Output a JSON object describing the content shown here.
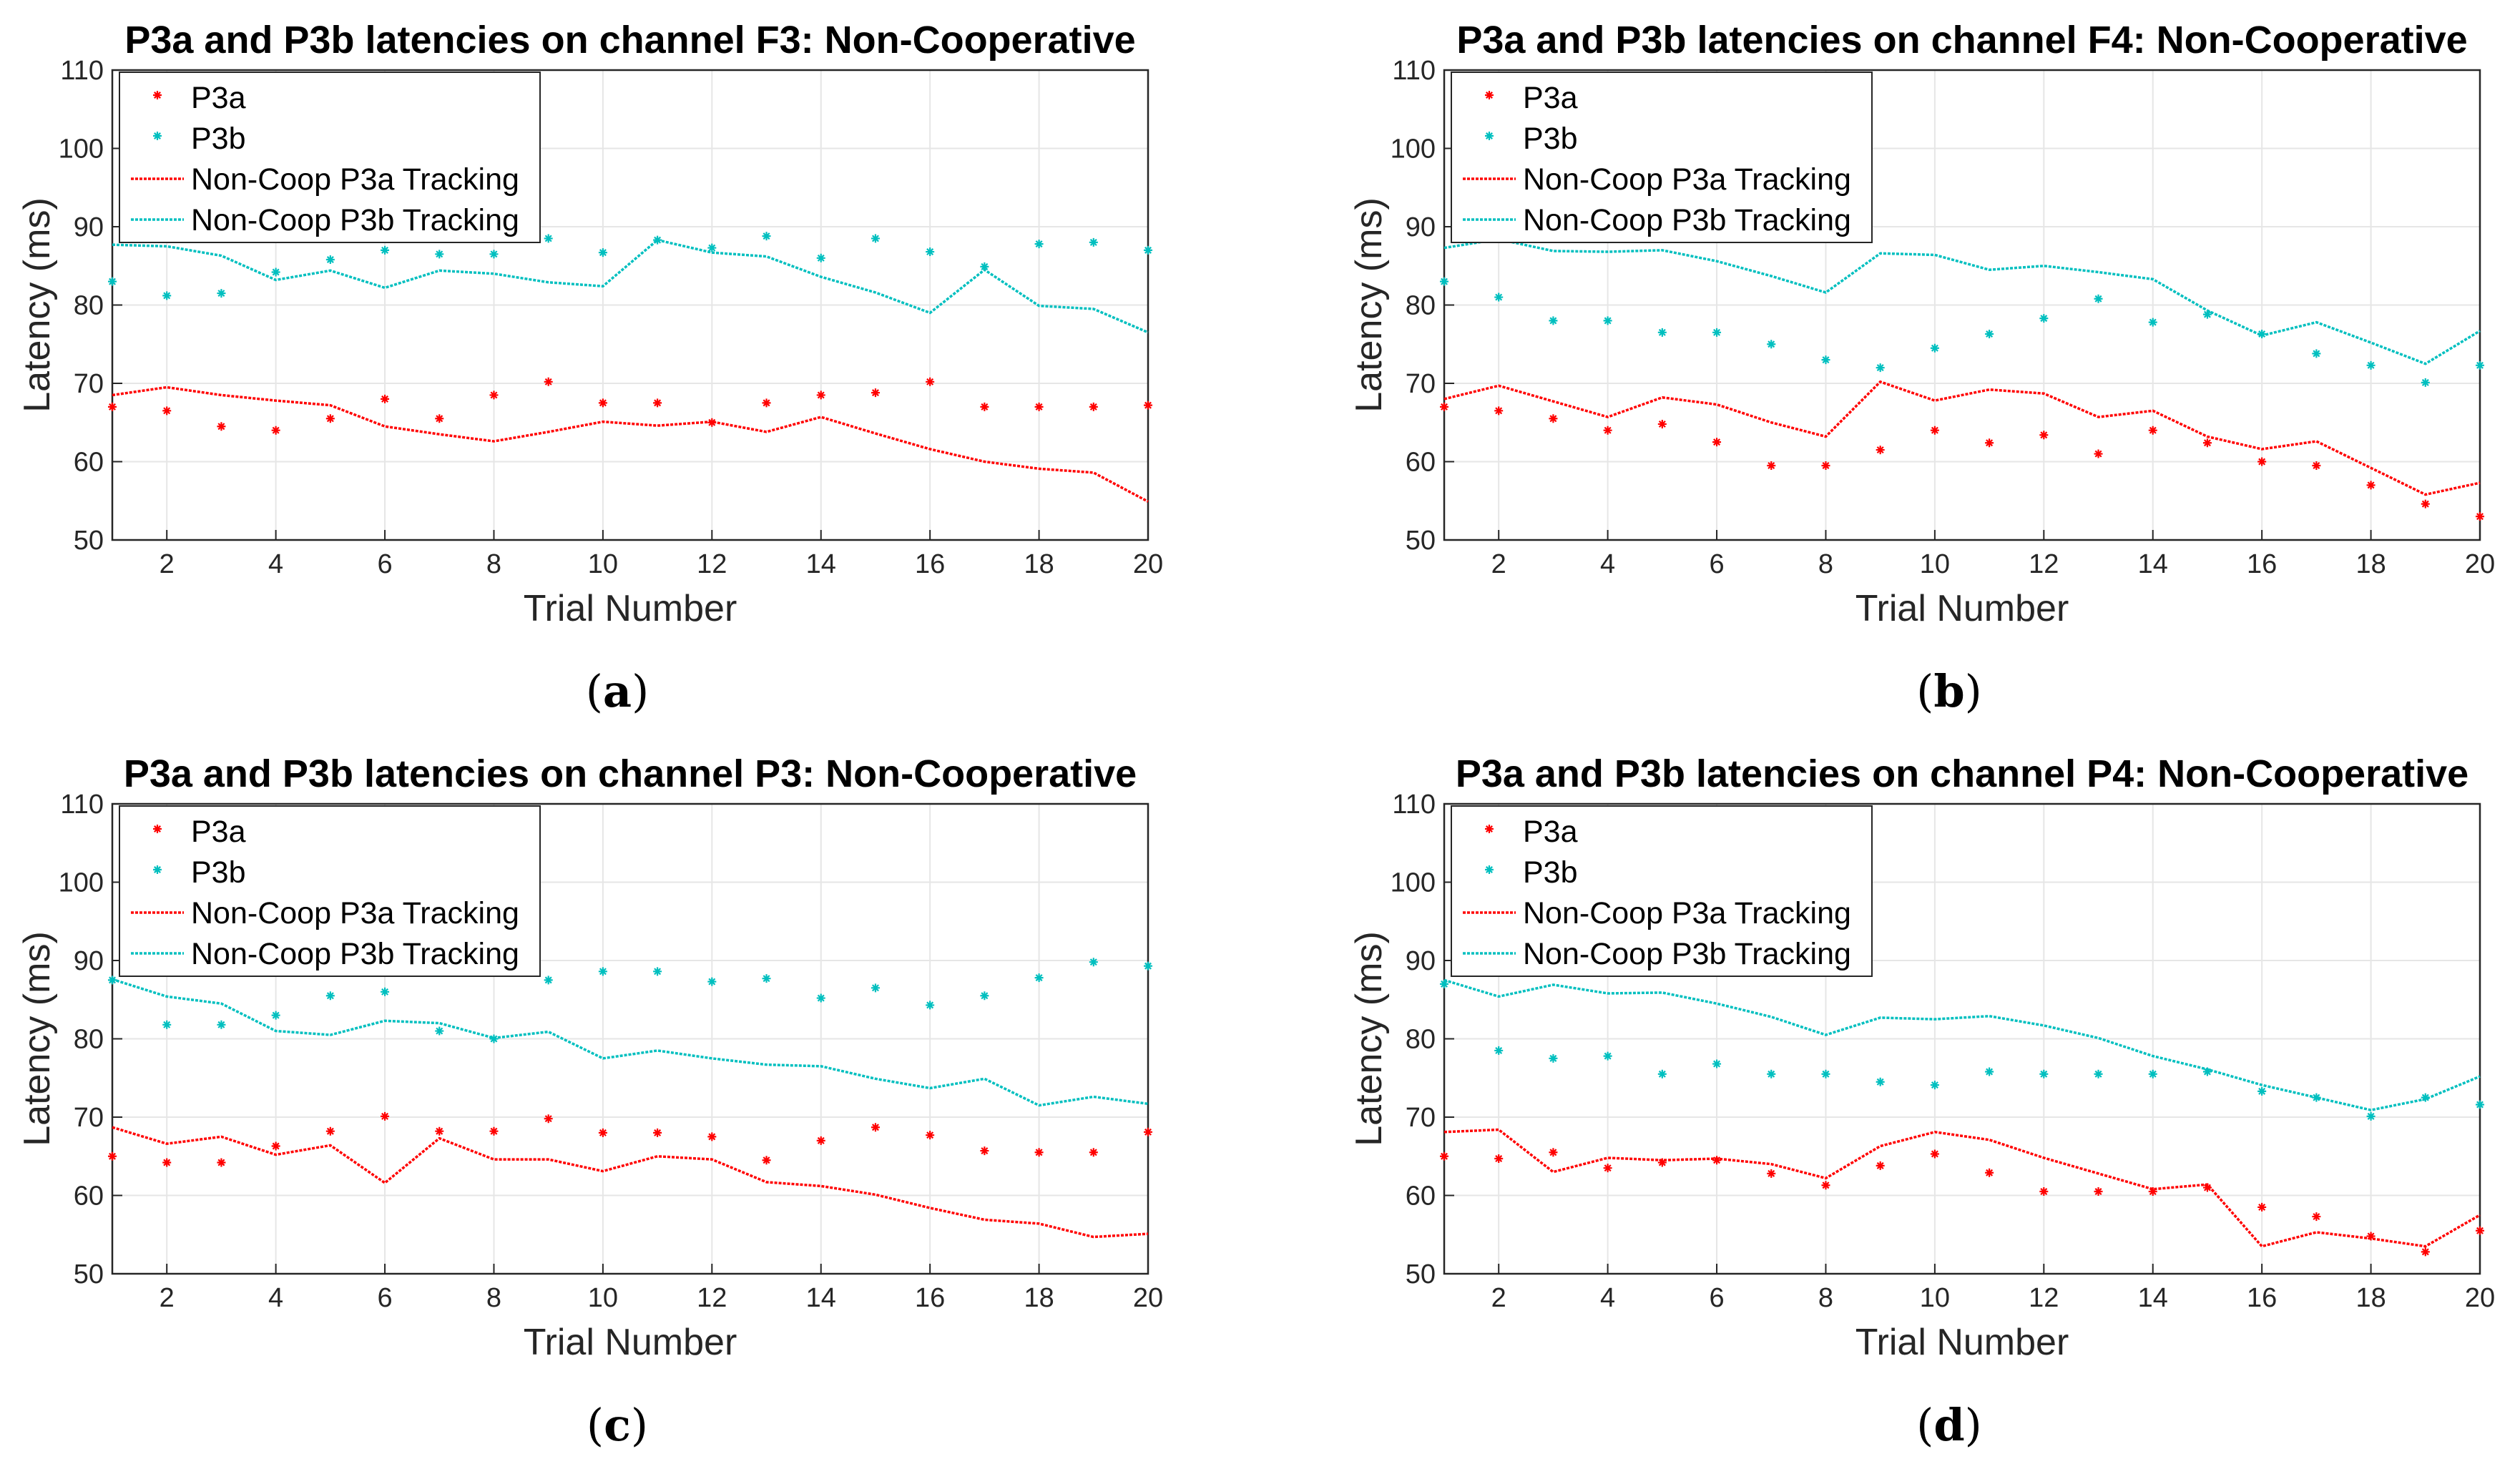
{
  "chart_data": [
    {
      "type": "line",
      "panel": "a",
      "title": "P3a and P3b latencies on channel F3: Non-Cooperative",
      "xlabel": "Trial Number",
      "ylabel": "Latency (ms)",
      "xlim": [
        1,
        20
      ],
      "ylim": [
        50,
        110
      ],
      "xticks": [
        2,
        4,
        6,
        8,
        10,
        12,
        14,
        16,
        18,
        20
      ],
      "yticks": [
        50,
        60,
        70,
        80,
        90,
        100,
        110
      ],
      "legend": [
        "P3a",
        "P3b",
        "Non-Coop P3a Tracking",
        "Non-Coop P3b Tracking"
      ],
      "x": [
        1,
        2,
        3,
        4,
        5,
        6,
        7,
        8,
        9,
        10,
        11,
        12,
        13,
        14,
        15,
        16,
        17,
        18,
        19,
        20
      ],
      "series": [
        {
          "name": "P3a",
          "kind": "scatter",
          "color": "#ff0000",
          "values": [
            67,
            66.5,
            64.5,
            64,
            65.5,
            68,
            65.5,
            68.5,
            70.2,
            67.5,
            67.5,
            65,
            67.5,
            68.5,
            68.8,
            70.2,
            67,
            67,
            67,
            67.2
          ]
        },
        {
          "name": "P3b",
          "kind": "scatter",
          "color": "#00bfbf",
          "values": [
            83,
            81.2,
            81.5,
            84.2,
            85.8,
            87,
            86.5,
            86.5,
            88.5,
            86.7,
            88.3,
            87.3,
            88.8,
            86,
            88.5,
            86.8,
            84.9,
            87.8,
            88,
            87
          ]
        },
        {
          "name": "Non-Coop P3a Tracking",
          "kind": "line",
          "color": "#ff0000",
          "values": [
            68.5,
            69.5,
            68.5,
            67.8,
            67.2,
            64.5,
            63.5,
            62.6,
            63.8,
            65.1,
            64.6,
            65.1,
            63.8,
            65.7,
            63.6,
            61.6,
            60,
            59.1,
            58.6,
            54.9
          ]
        },
        {
          "name": "Non-Coop P3b Tracking",
          "kind": "line",
          "color": "#00bfbf",
          "values": [
            87.7,
            87.5,
            86.3,
            83.2,
            84.4,
            82.2,
            84.4,
            84,
            82.9,
            82.4,
            88.3,
            86.7,
            86.2,
            83.6,
            81.6,
            79,
            84.5,
            79.9,
            79.5,
            76.5
          ]
        }
      ],
      "caption": "a"
    },
    {
      "type": "line",
      "panel": "b",
      "title": "P3a and P3b latencies on channel F4: Non-Cooperative",
      "xlabel": "Trial Number",
      "ylabel": "Latency (ms)",
      "xlim": [
        1,
        20
      ],
      "ylim": [
        50,
        110
      ],
      "xticks": [
        2,
        4,
        6,
        8,
        10,
        12,
        14,
        16,
        18,
        20
      ],
      "yticks": [
        50,
        60,
        70,
        80,
        90,
        100,
        110
      ],
      "legend": [
        "P3a",
        "P3b",
        "Non-Coop P3a Tracking",
        "Non-Coop P3b Tracking"
      ],
      "x": [
        1,
        2,
        3,
        4,
        5,
        6,
        7,
        8,
        9,
        10,
        11,
        12,
        13,
        14,
        15,
        16,
        17,
        18,
        19,
        20
      ],
      "series": [
        {
          "name": "P3a",
          "kind": "scatter",
          "color": "#ff0000",
          "values": [
            67,
            66.5,
            65.5,
            64,
            64.8,
            62.5,
            59.5,
            59.5,
            61.5,
            64,
            62.4,
            63.4,
            61,
            64,
            62.4,
            60,
            59.5,
            57,
            54.6,
            53
          ]
        },
        {
          "name": "P3b",
          "kind": "scatter",
          "color": "#00bfbf",
          "values": [
            83,
            81,
            78,
            78,
            76.5,
            76.5,
            75,
            73,
            72,
            74.5,
            76.3,
            78.3,
            80.8,
            77.8,
            78.8,
            76.3,
            73.8,
            72.3,
            70.1,
            72.3
          ]
        },
        {
          "name": "Non-Coop P3a Tracking",
          "kind": "line",
          "color": "#ff0000",
          "values": [
            68,
            69.7,
            67.7,
            65.7,
            68.2,
            67.3,
            65,
            63.2,
            70.2,
            67.8,
            69.2,
            68.7,
            65.7,
            66.5,
            63.2,
            61.6,
            62.6,
            59.2,
            55.8,
            57.3
          ]
        },
        {
          "name": "Non-Coop P3b Tracking",
          "kind": "line",
          "color": "#00bfbf",
          "values": [
            87.3,
            88.4,
            86.9,
            86.8,
            87,
            85.6,
            83.7,
            81.6,
            86.6,
            86.4,
            84.5,
            85,
            84.2,
            83.3,
            79.3,
            76.1,
            77.8,
            75.2,
            72.5,
            76.7
          ]
        }
      ],
      "caption": "b"
    },
    {
      "type": "line",
      "panel": "c",
      "title": "P3a and P3b latencies on channel P3: Non-Cooperative",
      "xlabel": "Trial Number",
      "ylabel": "Latency (ms)",
      "xlim": [
        1,
        20
      ],
      "ylim": [
        50,
        110
      ],
      "xticks": [
        2,
        4,
        6,
        8,
        10,
        12,
        14,
        16,
        18,
        20
      ],
      "yticks": [
        50,
        60,
        70,
        80,
        90,
        100,
        110
      ],
      "legend": [
        "P3a",
        "P3b",
        "Non-Coop P3a Tracking",
        "Non-Coop P3b Tracking"
      ],
      "x": [
        1,
        2,
        3,
        4,
        5,
        6,
        7,
        8,
        9,
        10,
        11,
        12,
        13,
        14,
        15,
        16,
        17,
        18,
        19,
        20
      ],
      "series": [
        {
          "name": "P3a",
          "kind": "scatter",
          "color": "#ff0000",
          "values": [
            65,
            64.2,
            64.2,
            66.3,
            68.2,
            70.1,
            68.2,
            68.2,
            69.8,
            68,
            68,
            67.5,
            64.5,
            67,
            68.7,
            67.7,
            65.7,
            65.5,
            65.5,
            68.1
          ]
        },
        {
          "name": "P3b",
          "kind": "scatter",
          "color": "#00bfbf",
          "values": [
            87.5,
            81.8,
            81.8,
            83,
            85.5,
            86,
            81,
            80,
            87.5,
            88.6,
            88.6,
            87.3,
            87.7,
            85.2,
            86.5,
            84.3,
            85.5,
            87.8,
            89.8,
            89.3
          ]
        },
        {
          "name": "Non-Coop P3a Tracking",
          "kind": "line",
          "color": "#ff0000",
          "values": [
            68.7,
            66.6,
            67.5,
            65.2,
            66.4,
            61.6,
            67.3,
            64.6,
            64.6,
            63.1,
            65,
            64.6,
            61.7,
            61.2,
            60.1,
            58.4,
            56.9,
            56.4,
            54.7,
            55.1
          ]
        },
        {
          "name": "Non-Coop P3b Tracking",
          "kind": "line",
          "color": "#00bfbf",
          "values": [
            87.6,
            85.4,
            84.5,
            81,
            80.5,
            82.3,
            82,
            80.1,
            80.9,
            77.5,
            78.5,
            77.5,
            76.7,
            76.5,
            74.9,
            73.7,
            74.9,
            71.5,
            72.6,
            71.7
          ]
        }
      ],
      "caption": "c"
    },
    {
      "type": "line",
      "panel": "d",
      "title": "P3a and P3b latencies on channel P4: Non-Cooperative",
      "xlabel": "Trial Number",
      "ylabel": "Latency (ms)",
      "xlim": [
        1,
        20
      ],
      "ylim": [
        50,
        110
      ],
      "xticks": [
        2,
        4,
        6,
        8,
        10,
        12,
        14,
        16,
        18,
        20
      ],
      "yticks": [
        50,
        60,
        70,
        80,
        90,
        100,
        110
      ],
      "legend": [
        "P3a",
        "P3b",
        "Non-Coop P3a Tracking",
        "Non-Coop P3b Tracking"
      ],
      "x": [
        1,
        2,
        3,
        4,
        5,
        6,
        7,
        8,
        9,
        10,
        11,
        12,
        13,
        14,
        15,
        16,
        17,
        18,
        19,
        20
      ],
      "series": [
        {
          "name": "P3a",
          "kind": "scatter",
          "color": "#ff0000",
          "values": [
            65,
            64.7,
            65.5,
            63.5,
            64.2,
            64.5,
            62.8,
            61.3,
            63.8,
            65.3,
            62.9,
            60.5,
            60.5,
            60.5,
            61,
            58.5,
            57.3,
            54.8,
            52.8,
            55.5
          ]
        },
        {
          "name": "P3b",
          "kind": "scatter",
          "color": "#00bfbf",
          "values": [
            87,
            78.5,
            77.5,
            77.8,
            75.5,
            76.8,
            75.5,
            75.5,
            74.5,
            74.1,
            75.8,
            75.5,
            75.5,
            75.5,
            75.8,
            73.3,
            72.5,
            70.1,
            72.5,
            71.6
          ]
        },
        {
          "name": "Non-Coop P3a Tracking",
          "kind": "line",
          "color": "#ff0000",
          "values": [
            68.1,
            68.4,
            63,
            64.8,
            64.5,
            64.7,
            64,
            62.2,
            66.3,
            68.1,
            67.1,
            64.8,
            62.8,
            60.8,
            61.4,
            53.5,
            55.3,
            54.5,
            53.5,
            57.5
          ]
        },
        {
          "name": "Non-Coop P3b Tracking",
          "kind": "line",
          "color": "#00bfbf",
          "values": [
            87.5,
            85.4,
            86.9,
            85.8,
            85.9,
            84.5,
            82.8,
            80.5,
            82.7,
            82.5,
            82.9,
            81.7,
            80.1,
            77.8,
            76.1,
            74.1,
            72.5,
            70.9,
            72.3,
            75.2
          ]
        }
      ],
      "caption": "d"
    }
  ]
}
